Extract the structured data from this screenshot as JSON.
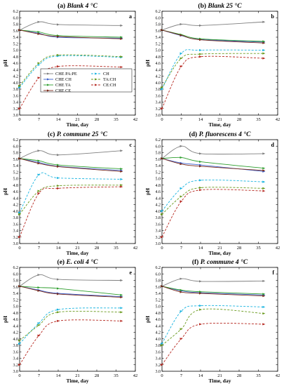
{
  "figure": {
    "series_styles": [
      {
        "key": "pape",
        "name": "CHE PA:PE",
        "color": "#7f7f7f",
        "dash": "solid",
        "marker": "arrow"
      },
      {
        "key": "che_ch",
        "name": "CHE CH",
        "color": "#3a5fcd",
        "dash": "solid",
        "marker": "arrow"
      },
      {
        "key": "che_ta",
        "name": "CHE TA",
        "color": "#2e9e2e",
        "dash": "solid",
        "marker": "arrow"
      },
      {
        "key": "che_ce",
        "name": "CHE CE",
        "color": "#7a2a1a",
        "dash": "solid",
        "marker": "arrow"
      },
      {
        "key": "ch",
        "name": "CH",
        "color": "#19b4e0",
        "dash": "dashed",
        "marker": "arrow"
      },
      {
        "key": "tach",
        "name": "TA:CH",
        "color": "#6a9a1e",
        "dash": "dashed",
        "marker": "arrow"
      },
      {
        "key": "cech",
        "name": "CE:CH",
        "color": "#b5261e",
        "dash": "dashed",
        "marker": "arrow"
      }
    ]
  },
  "chart_data": [
    {
      "type": "line",
      "panel_label": "(a)",
      "title": "Blank 4 °C",
      "corner_letter": "a",
      "xlabel": "Time, day",
      "ylabel": "pH",
      "xlim": [
        0,
        42
      ],
      "ylim": [
        3.0,
        6.2
      ],
      "xticks": [
        "0",
        "7",
        "14",
        "21",
        "28",
        "35",
        "42"
      ],
      "yticks": [
        "3.0",
        "3.2",
        "3.4",
        "3.6",
        "3.8",
        "4.0",
        "4.2",
        "4.4",
        "4.6",
        "4.8",
        "5.0",
        "5.2",
        "5.4",
        "5.6",
        "5.8",
        "6.0",
        "6.2"
      ],
      "x": [
        0,
        7,
        14,
        37
      ],
      "legend": {
        "shown": true,
        "placement": "center",
        "columns": 2,
        "entries": [
          "CHE PA:PE",
          "CH",
          "CHE CH",
          "TA:CH",
          "CHE TA",
          "CE:CH",
          "CHE CE"
        ]
      },
      "series": [
        {
          "name": "CHE PA:PE",
          "values": [
            5.62,
            5.87,
            5.79,
            5.76
          ]
        },
        {
          "name": "CHE CH",
          "values": [
            5.62,
            5.52,
            5.4,
            5.37
          ]
        },
        {
          "name": "CHE TA",
          "values": [
            5.62,
            5.56,
            5.45,
            5.4
          ]
        },
        {
          "name": "CHE CE",
          "values": [
            5.62,
            5.5,
            5.42,
            5.35
          ]
        },
        {
          "name": "CH",
          "values": [
            3.85,
            4.55,
            4.82,
            4.78
          ]
        },
        {
          "name": "TA:CH",
          "values": [
            3.9,
            4.6,
            4.85,
            4.8
          ]
        },
        {
          "name": "CE:CH",
          "values": [
            3.2,
            4.15,
            4.5,
            4.48
          ]
        }
      ]
    },
    {
      "type": "line",
      "panel_label": "(b)",
      "title": "Blank 25 °C",
      "corner_letter": "b",
      "xlabel": "Time, day",
      "ylabel": "pH",
      "xlim": [
        0,
        42
      ],
      "ylim": [
        3.0,
        6.2
      ],
      "xticks": [
        "0",
        "7",
        "14",
        "21",
        "28",
        "35",
        "42"
      ],
      "yticks": [
        "3.0",
        "3.2",
        "3.4",
        "3.6",
        "3.8",
        "4.0",
        "4.2",
        "4.4",
        "4.6",
        "4.8",
        "5.0",
        "5.2",
        "5.4",
        "5.6",
        "5.8",
        "6.0",
        "6.2"
      ],
      "x": [
        0,
        7,
        14,
        37
      ],
      "series": [
        {
          "name": "CHE PA:PE",
          "values": [
            5.62,
            5.8,
            5.76,
            5.87
          ]
        },
        {
          "name": "CHE CH",
          "values": [
            5.62,
            5.45,
            5.33,
            5.25
          ]
        },
        {
          "name": "CHE TA",
          "values": [
            5.62,
            5.48,
            5.35,
            5.27
          ]
        },
        {
          "name": "CHE CE",
          "values": [
            5.62,
            5.46,
            5.32,
            5.22
          ]
        },
        {
          "name": "CH",
          "values": [
            3.8,
            4.9,
            5.0,
            5.0
          ]
        },
        {
          "name": "TA:CH",
          "values": [
            3.85,
            4.75,
            4.88,
            4.9
          ]
        },
        {
          "name": "CE:CH",
          "values": [
            3.2,
            4.5,
            4.8,
            4.75
          ]
        }
      ]
    },
    {
      "type": "line",
      "panel_label": "(c)",
      "title": "P. commune 25 °C",
      "corner_letter": "c",
      "xlabel": "Time, day",
      "ylabel": "pH",
      "xlim": [
        0,
        42
      ],
      "ylim": [
        3.0,
        6.2
      ],
      "xticks": [
        "0",
        "7",
        "14",
        "21",
        "28",
        "35",
        "42"
      ],
      "yticks": [
        "3.0",
        "3.2",
        "3.4",
        "3.6",
        "3.8",
        "4.0",
        "4.2",
        "4.4",
        "4.6",
        "4.8",
        "5.0",
        "5.2",
        "5.4",
        "5.6",
        "5.8",
        "6.0",
        "6.2"
      ],
      "x": [
        0,
        7,
        14,
        37
      ],
      "series": [
        {
          "name": "CHE PA:PE",
          "values": [
            5.62,
            5.86,
            5.73,
            5.86
          ]
        },
        {
          "name": "CHE CH",
          "values": [
            5.62,
            5.5,
            5.38,
            5.25
          ]
        },
        {
          "name": "CHE TA",
          "values": [
            5.62,
            5.55,
            5.42,
            5.3
          ]
        },
        {
          "name": "CHE CE",
          "values": [
            5.62,
            5.47,
            5.37,
            5.22
          ]
        },
        {
          "name": "CH",
          "values": [
            3.95,
            5.12,
            5.02,
            4.98
          ]
        },
        {
          "name": "TA:CH",
          "values": [
            3.9,
            4.62,
            4.78,
            4.8
          ]
        },
        {
          "name": "CE:CH",
          "values": [
            3.2,
            4.55,
            4.7,
            4.75
          ]
        }
      ]
    },
    {
      "type": "line",
      "panel_label": "(d)",
      "title": "P. fluorescens 4 °C",
      "corner_letter": "d",
      "xlabel": "Time, day",
      "ylabel": "pH",
      "xlim": [
        0,
        42
      ],
      "ylim": [
        3.0,
        6.2
      ],
      "xticks": [
        "0",
        "7",
        "14",
        "21",
        "28",
        "35",
        "42"
      ],
      "yticks": [
        "3.0",
        "3.2",
        "3.4",
        "3.6",
        "3.8",
        "4.0",
        "4.2",
        "4.4",
        "4.6",
        "4.8",
        "5.0",
        "5.2",
        "5.4",
        "5.6",
        "5.8",
        "6.0",
        "6.2"
      ],
      "x": [
        0,
        7,
        14,
        37
      ],
      "series": [
        {
          "name": "CHE PA:PE",
          "values": [
            5.62,
            6.0,
            5.77,
            5.77
          ]
        },
        {
          "name": "CHE CH",
          "values": [
            5.62,
            5.48,
            5.42,
            5.22
          ]
        },
        {
          "name": "CHE TA",
          "values": [
            5.62,
            5.65,
            5.52,
            5.32
          ]
        },
        {
          "name": "CHE CE",
          "values": [
            5.62,
            5.45,
            5.38,
            5.25
          ]
        },
        {
          "name": "CH",
          "values": [
            4.0,
            4.7,
            4.95,
            4.9
          ]
        },
        {
          "name": "TA:CH",
          "values": [
            3.9,
            4.45,
            4.72,
            4.7
          ]
        },
        {
          "name": "CE:CH",
          "values": [
            3.2,
            4.3,
            4.65,
            4.62
          ]
        }
      ]
    },
    {
      "type": "line",
      "panel_label": "(e)",
      "title": "E. coli 4 °C",
      "corner_letter": "e",
      "xlabel": "Time, day",
      "ylabel": "pH",
      "xlim": [
        0,
        42
      ],
      "ylim": [
        3.0,
        6.2
      ],
      "xticks": [
        "0",
        "7",
        "14",
        "21",
        "28",
        "35",
        "42"
      ],
      "yticks": [
        "3.0",
        "3.2",
        "3.4",
        "3.6",
        "3.8",
        "4.0",
        "4.2",
        "4.4",
        "4.6",
        "4.8",
        "5.0",
        "5.2",
        "5.4",
        "5.6",
        "5.8",
        "6.0",
        "6.2"
      ],
      "x": [
        0,
        7,
        14,
        37
      ],
      "series": [
        {
          "name": "CHE PA:PE",
          "values": [
            5.62,
            5.97,
            5.83,
            5.8
          ]
        },
        {
          "name": "CHE CH",
          "values": [
            5.62,
            5.5,
            5.4,
            5.3
          ]
        },
        {
          "name": "CHE TA",
          "values": [
            5.62,
            5.58,
            5.55,
            5.35
          ]
        },
        {
          "name": "CHE CE",
          "values": [
            5.62,
            5.48,
            5.38,
            5.28
          ]
        },
        {
          "name": "CH",
          "values": [
            3.85,
            4.48,
            4.9,
            4.95
          ]
        },
        {
          "name": "TA:CH",
          "values": [
            3.95,
            4.42,
            4.82,
            4.82
          ]
        },
        {
          "name": "CE:CH",
          "values": [
            3.2,
            4.1,
            4.55,
            4.55
          ]
        }
      ]
    },
    {
      "type": "line",
      "panel_label": "(f)",
      "title": "P. commune 4 °C",
      "corner_letter": "f",
      "xlabel": "Time, day",
      "ylabel": "pH",
      "xlim": [
        0,
        42
      ],
      "ylim": [
        3.0,
        6.2
      ],
      "xticks": [
        "0",
        "7",
        "14",
        "21",
        "28",
        "35",
        "42"
      ],
      "yticks": [
        "3.0",
        "3.2",
        "3.4",
        "3.6",
        "3.8",
        "4.0",
        "4.2",
        "4.4",
        "4.6",
        "4.8",
        "5.0",
        "5.2",
        "5.4",
        "5.6",
        "5.8",
        "6.0",
        "6.2"
      ],
      "x": [
        0,
        7,
        14,
        37
      ],
      "series": [
        {
          "name": "CHE PA:PE",
          "values": [
            5.62,
            5.85,
            5.77,
            5.78
          ]
        },
        {
          "name": "CHE CH",
          "values": [
            5.62,
            5.48,
            5.42,
            5.35
          ]
        },
        {
          "name": "CHE TA",
          "values": [
            5.62,
            5.5,
            5.45,
            5.38
          ]
        },
        {
          "name": "CHE CE",
          "values": [
            5.62,
            5.44,
            5.4,
            5.32
          ]
        },
        {
          "name": "CH",
          "values": [
            3.85,
            4.85,
            5.02,
            4.98
          ]
        },
        {
          "name": "TA:CH",
          "values": [
            3.8,
            4.3,
            4.9,
            4.78
          ]
        },
        {
          "name": "CE:CH",
          "values": [
            3.2,
            4.0,
            4.45,
            4.45
          ]
        }
      ]
    }
  ]
}
